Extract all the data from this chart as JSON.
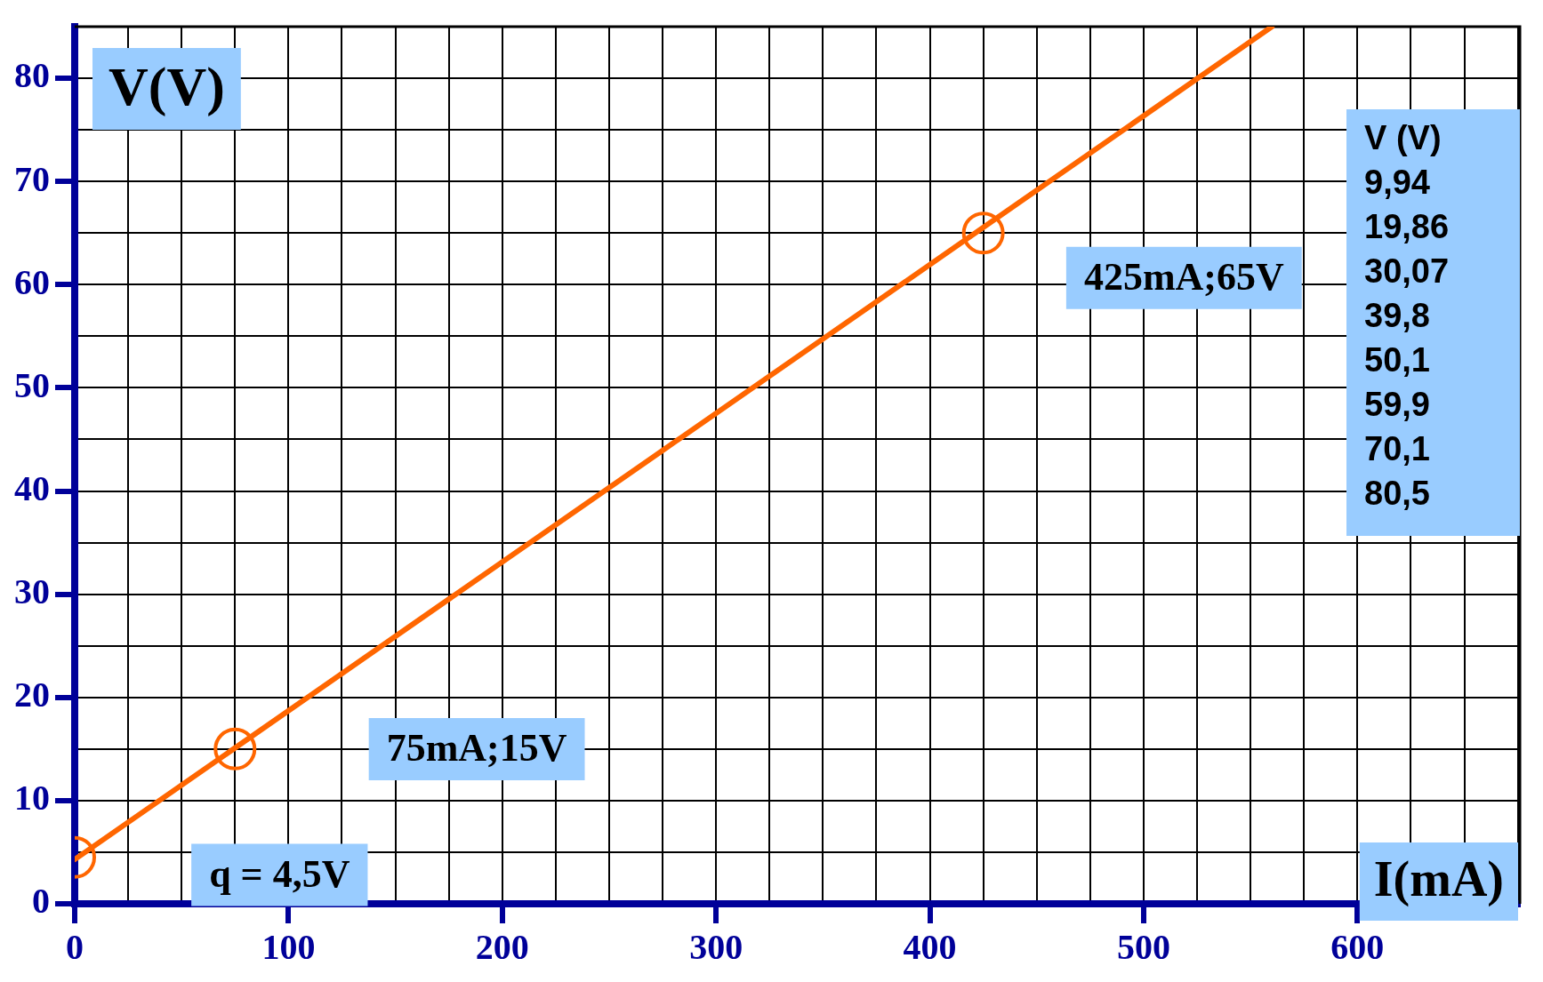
{
  "chart_data": {
    "type": "line",
    "xlabel": "I(mA)",
    "ylabel": "V(V)",
    "xlim": [
      0,
      676
    ],
    "ylim": [
      0,
      85
    ],
    "grid": true,
    "xticks": [
      0,
      {
        "value": 25,
        "label": null
      },
      {
        "value": 50,
        "label": null
      },
      {
        "value": 75,
        "label": null
      },
      100,
      {
        "value": 125,
        "label": null
      },
      {
        "value": 150,
        "label": null
      },
      {
        "value": 175,
        "label": null
      },
      200,
      {
        "value": 225,
        "label": null
      },
      {
        "value": 250,
        "label": null
      },
      {
        "value": 275,
        "label": null
      },
      300,
      {
        "value": 325,
        "label": null
      },
      {
        "value": 350,
        "label": null
      },
      {
        "value": 375,
        "label": null
      },
      400,
      {
        "value": 425,
        "label": null
      },
      {
        "value": 450,
        "label": null
      },
      {
        "value": 475,
        "label": null
      },
      500,
      {
        "value": 525,
        "label": null
      },
      {
        "value": 550,
        "label": null
      },
      {
        "value": 575,
        "label": null
      },
      600,
      {
        "value": 625,
        "label": null
      },
      {
        "value": 650,
        "label": null
      },
      {
        "value": 675,
        "label": null
      }
    ],
    "yticks": [
      0,
      {
        "value": 5,
        "label": null
      },
      10,
      {
        "value": 15,
        "label": null
      },
      20,
      {
        "value": 25,
        "label": null
      },
      30,
      {
        "value": 35,
        "label": null
      },
      40,
      {
        "value": 45,
        "label": null
      },
      50,
      {
        "value": 55,
        "label": null
      },
      60,
      {
        "value": 65,
        "label": null
      },
      70,
      {
        "value": 75,
        "label": null
      },
      80,
      {
        "value": 85,
        "label": null
      }
    ],
    "series": [
      {
        "color": "#ff6600",
        "marker": "none",
        "x": [
          0,
          560
        ],
        "values": [
          4.3,
          85
        ]
      },
      {
        "type": "scatter",
        "color": "#ff6600",
        "marker": "circle",
        "x": [
          0,
          75,
          425
        ],
        "values": [
          4.5,
          15,
          65
        ]
      }
    ],
    "annotations": [
      "q = 4,5V",
      "75mA;15V",
      "425mA;65V",
      "V (V)",
      "9,94",
      "19,86",
      "30,07",
      "39,8",
      "50,1",
      "59,9",
      "70,1",
      "80,5"
    ]
  }
}
